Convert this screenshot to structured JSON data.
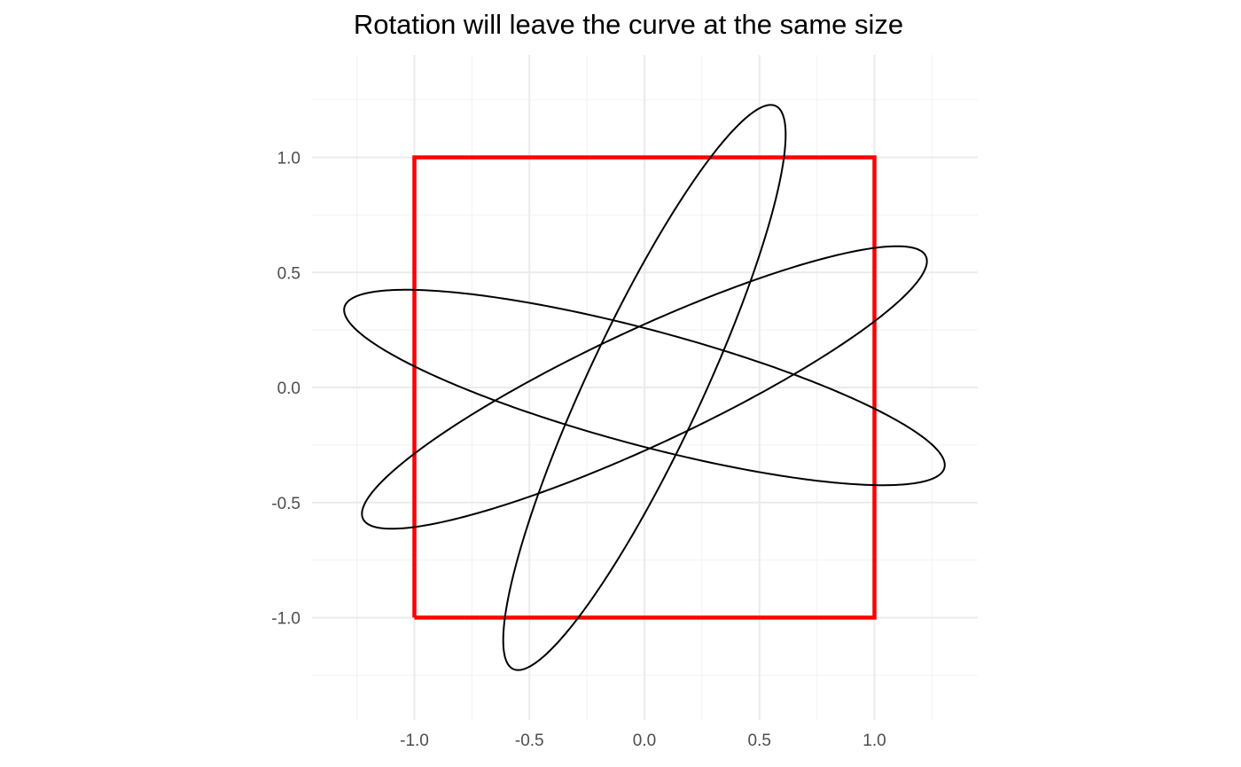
{
  "chart_data": {
    "type": "line",
    "title": "Rotation will leave the curve at the same size",
    "xlabel": "",
    "ylabel": "",
    "xlim": [
      -1.25,
      1.25
    ],
    "ylim": [
      -1.3,
      1.3
    ],
    "x_ticks": [
      -1.0,
      -0.5,
      0.0,
      0.5,
      1.0
    ],
    "x_tick_labels": [
      "-1.0",
      "-0.5",
      "0.0",
      "0.5",
      "1.0"
    ],
    "y_ticks": [
      -1.0,
      -0.5,
      0.0,
      0.5,
      1.0
    ],
    "y_tick_labels": [
      "-1.0",
      "-0.5",
      "0.0",
      "0.5",
      "1.0"
    ],
    "minor_ticks": [
      -1.25,
      -0.75,
      -0.25,
      0.25,
      0.75,
      1.25
    ],
    "grid": true,
    "legend": "none",
    "square": {
      "x": [
        -1,
        1,
        1,
        -1,
        -1
      ],
      "y": [
        -1,
        -1,
        1,
        1,
        -1
      ],
      "color": "#ff0000"
    },
    "ellipses": {
      "color": "#000000",
      "center": [
        0,
        0
      ],
      "semi_axes": [
        1.35,
        0.25
      ],
      "rotation_degrees": [
        -15,
        25,
        65
      ]
    }
  }
}
